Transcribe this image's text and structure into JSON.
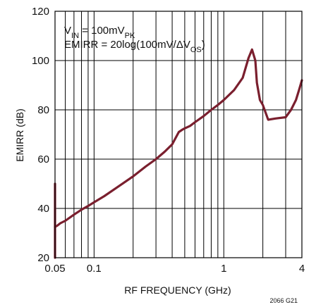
{
  "chart_data": {
    "type": "line",
    "xlabel": "RF FREQUENCY (GHz)",
    "ylabel": "EMIRR (dB)",
    "xscale": "log",
    "xlim": [
      0.05,
      4
    ],
    "ylim": [
      20,
      120
    ],
    "grid": true,
    "x_tick_labels": [
      "0.05",
      "0.1",
      "1",
      "4"
    ],
    "x_tick_values": [
      0.05,
      0.1,
      1,
      4
    ],
    "y_tick_labels": [
      "20",
      "40",
      "60",
      "80",
      "100",
      "120"
    ],
    "y_tick_values": [
      20,
      40,
      60,
      80,
      100,
      120
    ],
    "annotations": {
      "line1": {
        "base": "V",
        "sub": "IN",
        "tail": " = 100mV",
        "sub2": "PK"
      },
      "line2": {
        "base": "EMIRR = 20log(100mV/ΔV",
        "sub": "OS",
        "tail": ")"
      }
    },
    "figure_id": "2066 G21",
    "series": [
      {
        "color": "#7a1f2e",
        "x": [
          0.05,
          0.052,
          0.055,
          0.06,
          0.07,
          0.08,
          0.09,
          0.1,
          0.12,
          0.15,
          0.2,
          0.25,
          0.3,
          0.35,
          0.4,
          0.45,
          0.48,
          0.5,
          0.55,
          0.6,
          0.7,
          0.8,
          0.9,
          1,
          1.2,
          1.4,
          1.55,
          1.65,
          1.75,
          1.8,
          1.9,
          2.0,
          2.2,
          2.5,
          3.0,
          3.3,
          3.6,
          3.8,
          4.0
        ],
        "y": [
          32.5,
          33,
          34,
          35,
          37.5,
          39.5,
          41,
          42.5,
          45,
          48.5,
          53,
          57,
          60,
          63,
          66,
          71,
          72,
          72.5,
          73.5,
          75,
          77.5,
          80,
          82,
          84,
          88,
          93,
          101,
          104.5,
          100,
          91,
          84,
          82,
          76,
          76.5,
          77,
          80,
          84,
          88,
          92
        ]
      },
      {
        "color": "#7a1f2e",
        "x": [
          0.05,
          0.05
        ],
        "y": [
          20,
          50
        ]
      }
    ]
  }
}
